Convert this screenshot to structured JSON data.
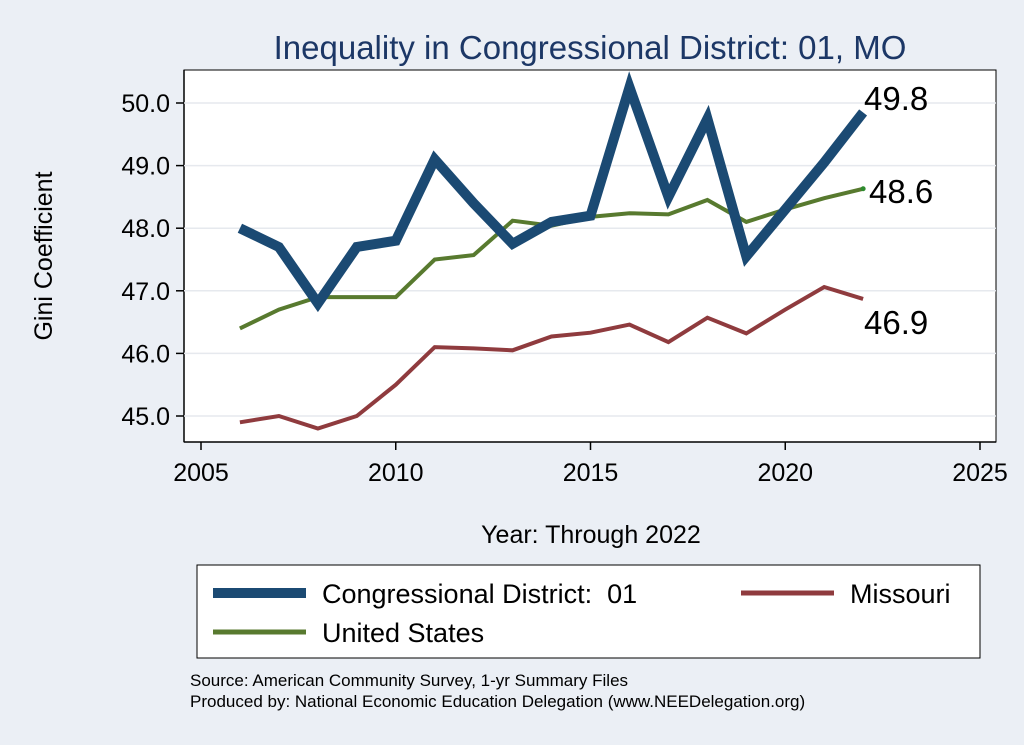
{
  "chart_data": {
    "type": "line",
    "title": "Inequality in Congressional District:  01, MO",
    "xlabel": "Year: Through 2022",
    "ylabel": "Gini Coefficient",
    "xlim": [
      2005,
      2025
    ],
    "ylim": [
      44.8,
      50.4
    ],
    "xticks": [
      {
        "value": 2005,
        "label": "2005"
      },
      {
        "value": 2010,
        "label": "2010"
      },
      {
        "value": 2015,
        "label": "2015"
      },
      {
        "value": 2020,
        "label": "2020"
      },
      {
        "value": 2025,
        "label": "2025"
      }
    ],
    "yticks": [
      {
        "value": 45,
        "label": "45.0"
      },
      {
        "value": 46,
        "label": "46.0"
      },
      {
        "value": 47,
        "label": "47.0"
      },
      {
        "value": 48,
        "label": "48.0"
      },
      {
        "value": 49,
        "label": "49.0"
      },
      {
        "value": 50,
        "label": "50.0"
      }
    ],
    "x": [
      2006,
      2007,
      2008,
      2009,
      2010,
      2011,
      2012,
      2013,
      2014,
      2015,
      2016,
      2017,
      2018,
      2019,
      2020,
      2021,
      2022
    ],
    "series": [
      {
        "name": "Congressional District:  01",
        "color": "#1b4a73",
        "values": [
          48.0,
          47.7,
          46.8,
          47.7,
          47.8,
          49.1,
          48.4,
          47.75,
          48.1,
          48.2,
          50.25,
          48.5,
          49.75,
          47.55,
          48.3,
          49.05,
          49.85
        ],
        "end_label": "49.8"
      },
      {
        "name": "Missouri",
        "color": "#8f3b3e",
        "values": [
          44.9,
          45.0,
          44.8,
          45.0,
          45.5,
          46.1,
          46.08,
          46.05,
          46.27,
          46.33,
          46.46,
          46.18,
          46.57,
          46.32,
          46.7,
          47.06,
          46.87
        ],
        "end_label": "46.9"
      },
      {
        "name": "United States",
        "color": "#587a2f",
        "values": [
          46.4,
          46.7,
          46.9,
          46.9,
          46.9,
          47.5,
          47.57,
          48.12,
          48.04,
          48.18,
          48.24,
          48.22,
          48.45,
          48.1,
          48.3,
          48.48,
          48.63
        ],
        "end_label": "48.6"
      }
    ],
    "legend_position": "bottom"
  },
  "source": {
    "line1": "Source: American Community Survey, 1-yr Summary Files",
    "line2": "Produced by: National Economic Education Delegation (www.NEEDelegation.org)"
  }
}
